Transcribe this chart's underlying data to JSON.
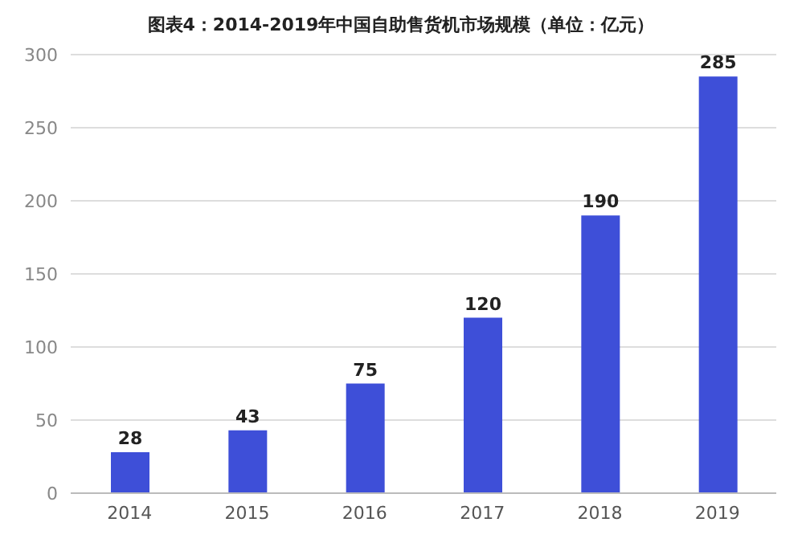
{
  "chart_data": {
    "type": "bar",
    "title": "图表4：2014-2019年中国自助售货机市场规模（单位：亿元）",
    "categories": [
      "2014",
      "2015",
      "2016",
      "2017",
      "2018",
      "2019"
    ],
    "values": [
      28,
      43,
      75,
      120,
      190,
      285
    ],
    "color": "#3e4fd8",
    "ylim": [
      0,
      300
    ],
    "yticks": [
      0,
      50,
      100,
      150,
      200,
      250,
      300
    ],
    "grid": "y",
    "data_labels": true
  }
}
